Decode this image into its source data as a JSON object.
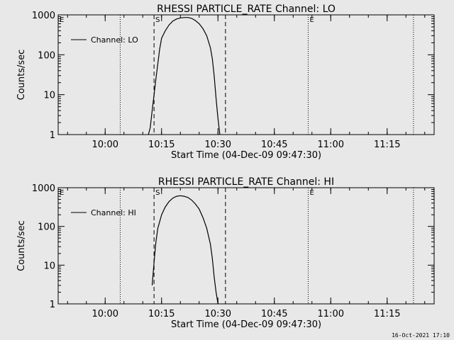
{
  "footer": {
    "timestamp": "16-Oct-2021 17:10"
  },
  "chart_data": [
    {
      "type": "line",
      "title": "RHESSI PARTICLE_RATE Channel: LO",
      "xlabel": "Start Time (04-Dec-09 09:47:30)",
      "ylabel": "Counts/sec",
      "yscale": "log",
      "ylim": [
        1,
        1000
      ],
      "yticks": [
        1,
        10,
        100,
        1000
      ],
      "xlim": [
        "09:47:30",
        "11:27:30"
      ],
      "xticks": [
        "10:00",
        "10:15",
        "10:30",
        "10:45",
        "11:00",
        "11:15"
      ],
      "legend": {
        "label": "Channel: LO",
        "placement": "top-left"
      },
      "markers": {
        "dotted": [
          "10:04",
          "10:54",
          "11:22"
        ],
        "dashed": [
          "10:13",
          "10:32"
        ],
        "labels": [
          {
            "text": "S",
            "at": "10:13"
          },
          {
            "text": "E",
            "at": "10:54"
          },
          {
            "text": "E",
            "at": "09:47:30"
          }
        ]
      },
      "series": [
        {
          "name": "Channel: LO",
          "x": [
            "10:11:30",
            "10:12",
            "10:12:30",
            "10:13",
            "10:13:30",
            "10:14",
            "10:14:30",
            "10:15",
            "10:16",
            "10:17",
            "10:18",
            "10:19",
            "10:20",
            "10:21",
            "10:22",
            "10:23",
            "10:24",
            "10:25",
            "10:26",
            "10:27",
            "10:28",
            "10:28:30",
            "10:29",
            "10:29:30",
            "10:30",
            "10:30:30"
          ],
          "y": [
            1,
            1.5,
            4,
            10,
            25,
            60,
            140,
            260,
            400,
            560,
            700,
            790,
            840,
            860,
            860,
            820,
            720,
            600,
            450,
            300,
            150,
            80,
            30,
            8,
            2.5,
            1
          ]
        }
      ]
    },
    {
      "type": "line",
      "title": "RHESSI PARTICLE_RATE Channel: HI",
      "xlabel": "Start Time (04-Dec-09 09:47:30)",
      "ylabel": "Counts/sec",
      "yscale": "log",
      "ylim": [
        1,
        1000
      ],
      "yticks": [
        1,
        10,
        100,
        1000
      ],
      "xlim": [
        "09:47:30",
        "11:27:30"
      ],
      "xticks": [
        "10:00",
        "10:15",
        "10:30",
        "10:45",
        "11:00",
        "11:15"
      ],
      "legend": {
        "label": "Channel: HI",
        "placement": "top-left"
      },
      "markers": {
        "dotted": [
          "10:04",
          "10:54",
          "11:22"
        ],
        "dashed": [
          "10:13",
          "10:32"
        ],
        "labels": [
          {
            "text": "S",
            "at": "10:13"
          },
          {
            "text": "E",
            "at": "10:54"
          },
          {
            "text": "E",
            "at": "09:47:30"
          }
        ]
      },
      "series": [
        {
          "name": "Channel: HI",
          "x": [
            "10:12:30",
            "10:13",
            "10:13:30",
            "10:14",
            "10:15",
            "10:16",
            "10:17",
            "10:18",
            "10:19",
            "10:20",
            "10:21",
            "10:22",
            "10:23",
            "10:24",
            "10:25",
            "10:26",
            "10:27",
            "10:28",
            "10:28:30",
            "10:29",
            "10:29:30",
            "10:30"
          ],
          "y": [
            3,
            12,
            40,
            90,
            200,
            320,
            440,
            540,
            600,
            620,
            600,
            560,
            480,
            380,
            280,
            170,
            90,
            35,
            15,
            5,
            2,
            1
          ]
        }
      ]
    }
  ]
}
